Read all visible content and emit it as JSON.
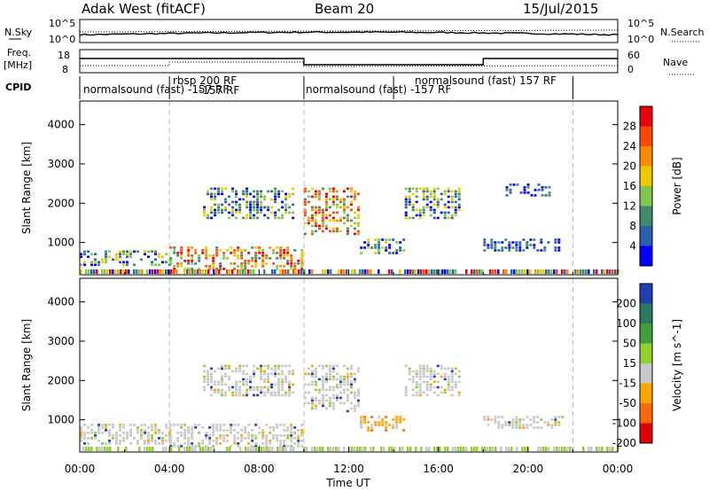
{
  "header": {
    "title": "Adak West (fitACF)",
    "beam": "Beam 20",
    "date": "15/Jul/2015"
  },
  "noise_panel": {
    "left_label": "N.Sky",
    "right_label": "N.Search",
    "left_ticks": [
      "10^5",
      "10^0"
    ],
    "right_ticks": [
      "10^5",
      "10^0"
    ]
  },
  "freq_panel": {
    "left_label_1": "Freq.",
    "left_label_2": "[MHz]",
    "left_ticks": [
      "18",
      "8"
    ],
    "right_label": "Nave",
    "right_ticks": [
      "60",
      "0"
    ]
  },
  "cpid": {
    "label": "CPID",
    "segments": [
      {
        "text": "normalsound (fast) -157 RF",
        "start_h": 0,
        "end_h": 4
      },
      {
        "text": "rbsp 200 RF",
        "start_h": 4,
        "end_h": 10
      },
      {
        "text": "-157 RF",
        "start_h": 4,
        "end_h": 10
      },
      {
        "text": "normalsound (fast) -157 RF",
        "start_h": 10,
        "end_h": 14
      },
      {
        "text": "normalsound (fast) 157 RF",
        "start_h": 14,
        "end_h": 22
      }
    ],
    "dividers_h": [
      4,
      10,
      14,
      22
    ]
  },
  "chart_data": [
    {
      "type": "heatmap",
      "ylabel": "Slant Range [km]",
      "xlim_h": [
        0,
        24
      ],
      "ylim": [
        180,
        4600
      ],
      "y_ticks": [
        1000,
        2000,
        3000,
        4000
      ],
      "colorbar": {
        "label": "Power [dB]",
        "ticks": [
          "28",
          "24",
          "20",
          "16",
          "12",
          "8",
          "4"
        ],
        "colors": [
          "#e8000b",
          "#ff4a00",
          "#ff8c00",
          "#f0c800",
          "#7ec850",
          "#3e8d69",
          "#2a5fae",
          "#0000ff"
        ]
      },
      "regions": [
        {
          "x": [
            0,
            4
          ],
          "y": [
            400,
            800
          ],
          "level": "mid"
        },
        {
          "x": [
            4,
            10
          ],
          "y": [
            300,
            900
          ],
          "level": "high"
        },
        {
          "x": [
            5.5,
            9.5
          ],
          "y": [
            1600,
            2400
          ],
          "level": "mid"
        },
        {
          "x": [
            10,
            12.5
          ],
          "y": [
            1200,
            2400
          ],
          "level": "high"
        },
        {
          "x": [
            12.5,
            14.5
          ],
          "y": [
            700,
            1100
          ],
          "level": "mid"
        },
        {
          "x": [
            14.5,
            17
          ],
          "y": [
            1600,
            2400
          ],
          "level": "mid"
        },
        {
          "x": [
            18,
            21.5
          ],
          "y": [
            800,
            1100
          ],
          "level": "low"
        },
        {
          "x": [
            19,
            21
          ],
          "y": [
            2200,
            2500
          ],
          "level": "low"
        }
      ]
    },
    {
      "type": "heatmap",
      "ylabel": "Slant Range [km]",
      "xlabel": "Time UT",
      "x_ticks": [
        "00:00",
        "04:00",
        "08:00",
        "12:00",
        "16:00",
        "20:00",
        "00:00"
      ],
      "xlim_h": [
        0,
        24
      ],
      "ylim": [
        180,
        4600
      ],
      "y_ticks": [
        1000,
        2000,
        3000,
        4000
      ],
      "colorbar": {
        "label": "Velocity [m s^-1]",
        "ticks": [
          "200",
          "100",
          "50",
          "15",
          "-15",
          "-50",
          "-100",
          "-200"
        ],
        "colors": [
          "#2040b0",
          "#2a7a5f",
          "#3fa03a",
          "#90d030",
          "#c8c8c8",
          "#ffa500",
          "#ff6a00",
          "#e00000"
        ]
      },
      "regions": [
        {
          "x": [
            0,
            4
          ],
          "y": [
            400,
            900
          ],
          "level": "ground"
        },
        {
          "x": [
            4,
            10
          ],
          "y": [
            300,
            900
          ],
          "level": "ground"
        },
        {
          "x": [
            5.5,
            9.5
          ],
          "y": [
            1600,
            2400
          ],
          "level": "ground"
        },
        {
          "x": [
            10,
            12.5
          ],
          "y": [
            1200,
            2400
          ],
          "level": "ground"
        },
        {
          "x": [
            12.5,
            14.5
          ],
          "y": [
            700,
            1100
          ],
          "level": "negative"
        },
        {
          "x": [
            14.5,
            17
          ],
          "y": [
            1600,
            2400
          ],
          "level": "ground"
        },
        {
          "x": [
            18,
            21.5
          ],
          "y": [
            800,
            1100
          ],
          "level": "ground"
        }
      ]
    }
  ]
}
